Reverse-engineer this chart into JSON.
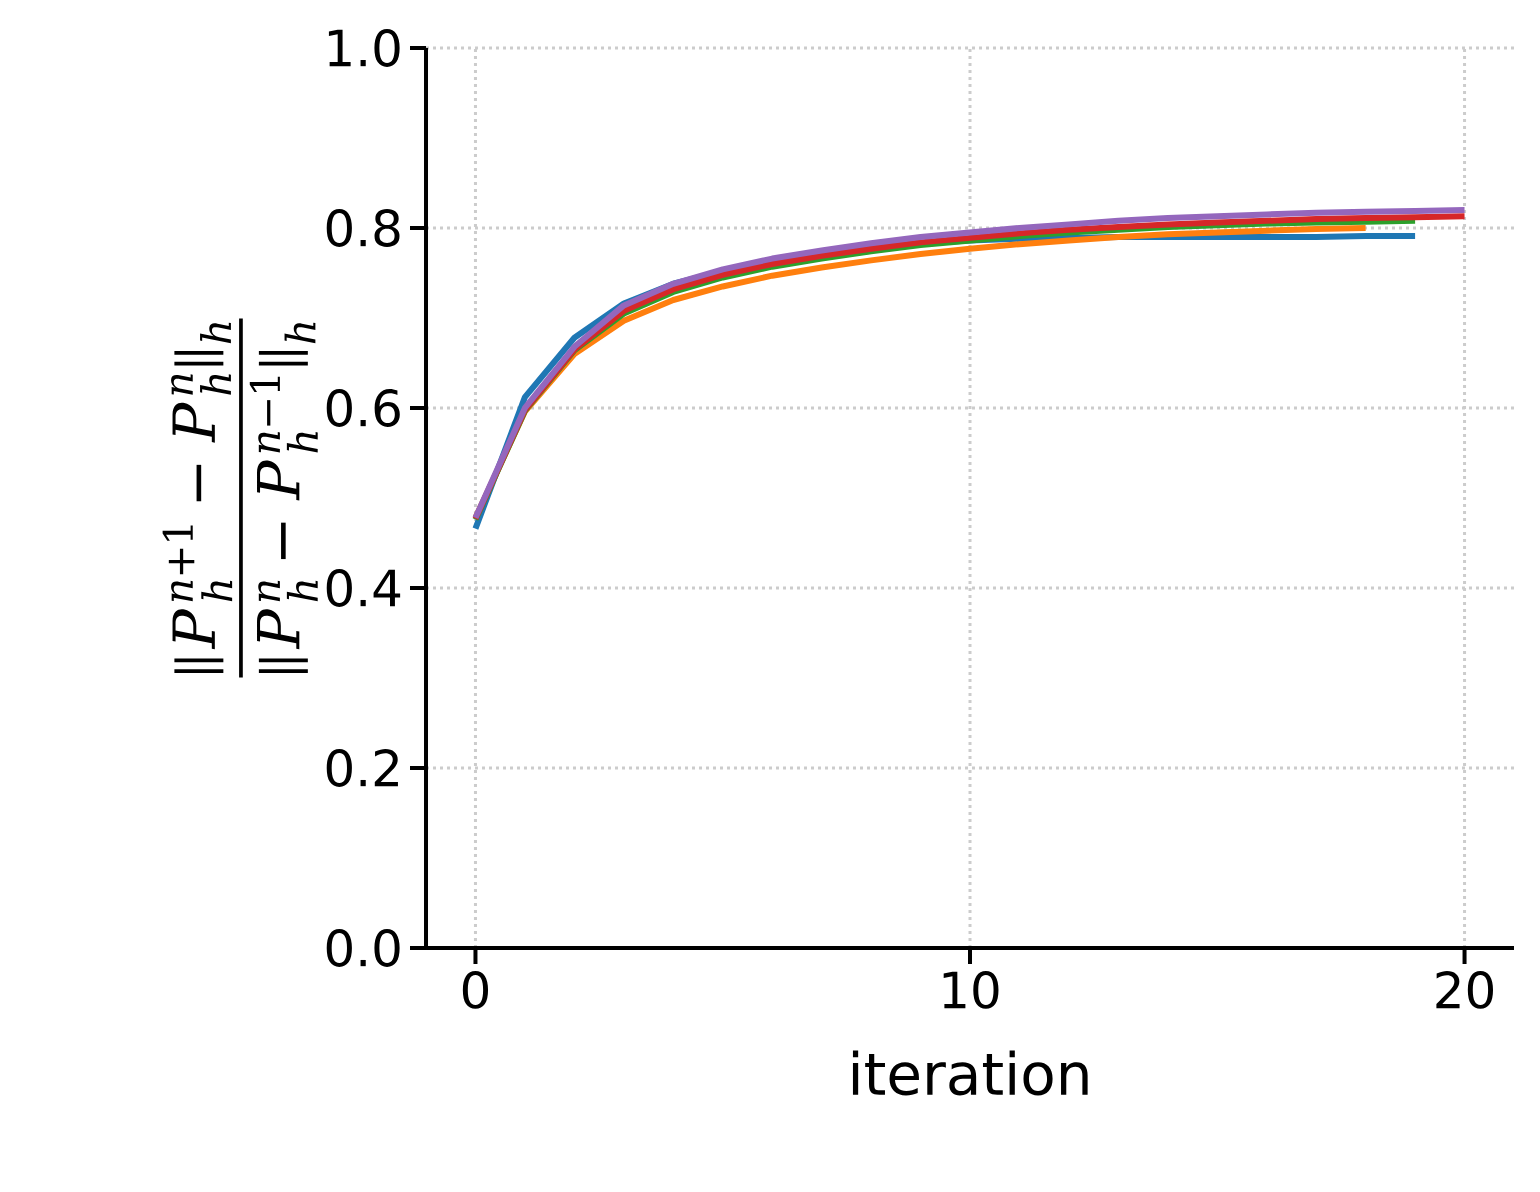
{
  "chart_data": {
    "type": "line",
    "xlabel": "iteration",
    "ylabel": "\\frac{\\|P_h^{n+1}-P_h^{n}\\|_h}{\\|P_h^{n}-P_h^{n-1}\\|_h}",
    "x": [
      0,
      1,
      2,
      3,
      4,
      5,
      6,
      7,
      8,
      9,
      10,
      11,
      12,
      13,
      14,
      15,
      16,
      17,
      18,
      19,
      20
    ],
    "series": [
      {
        "color": "#1f77b4",
        "values": [
          0.466,
          0.612,
          0.678,
          0.716,
          0.738,
          0.752,
          0.763,
          0.771,
          0.778,
          0.783,
          0.786,
          0.788,
          0.789,
          0.79,
          0.79,
          0.79,
          0.79,
          0.79,
          0.791,
          0.791,
          null
        ]
      },
      {
        "color": "#ff7f0e",
        "values": [
          0.478,
          0.596,
          0.66,
          0.697,
          0.72,
          0.735,
          0.747,
          0.756,
          0.764,
          0.771,
          0.777,
          0.782,
          0.786,
          0.79,
          0.793,
          0.795,
          0.797,
          0.799,
          0.8,
          null,
          null
        ]
      },
      {
        "color": "#2ca02c",
        "values": [
          0.476,
          0.597,
          0.664,
          0.705,
          0.729,
          0.745,
          0.757,
          0.766,
          0.774,
          0.781,
          0.786,
          0.791,
          0.795,
          0.798,
          0.801,
          0.803,
          0.805,
          0.806,
          0.807,
          0.808,
          null
        ]
      },
      {
        "color": "#d62728",
        "values": [
          0.477,
          0.598,
          0.665,
          0.708,
          0.732,
          0.748,
          0.76,
          0.769,
          0.777,
          0.784,
          0.789,
          0.794,
          0.798,
          0.801,
          0.804,
          0.806,
          0.808,
          0.81,
          0.811,
          0.812,
          0.813
        ]
      },
      {
        "color": "#9467bd",
        "values": [
          0.478,
          0.6,
          0.668,
          0.714,
          0.738,
          0.754,
          0.766,
          0.775,
          0.783,
          0.79,
          0.795,
          0.8,
          0.804,
          0.808,
          0.811,
          0.813,
          0.815,
          0.817,
          0.818,
          0.819,
          0.82
        ]
      }
    ],
    "xlim": [
      -1,
      21
    ],
    "ylim": [
      0,
      1
    ],
    "xticks": [
      0,
      10,
      20
    ],
    "yticks": [
      {
        "value": 0,
        "label": "0.0"
      },
      {
        "value": 0.2,
        "label": "0.2"
      },
      {
        "value": 0.4,
        "label": "0.4"
      },
      {
        "value": 0.6,
        "label": "0.6"
      },
      {
        "value": 0.8,
        "label": "0.8"
      },
      {
        "value": 1,
        "label": "1.0"
      }
    ],
    "grid": true,
    "marker": "none",
    "line_style": "solid"
  }
}
